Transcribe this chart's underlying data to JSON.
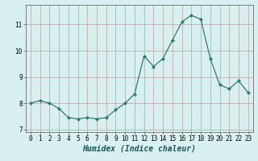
{
  "x": [
    0,
    1,
    2,
    3,
    4,
    5,
    6,
    7,
    8,
    9,
    10,
    11,
    12,
    13,
    14,
    15,
    16,
    17,
    18,
    19,
    20,
    21,
    22,
    23
  ],
  "y": [
    8.0,
    8.1,
    8.0,
    7.8,
    7.45,
    7.4,
    7.45,
    7.4,
    7.45,
    7.75,
    8.0,
    8.35,
    9.8,
    9.4,
    9.7,
    10.4,
    11.1,
    11.35,
    11.2,
    9.7,
    8.7,
    8.55,
    8.85,
    8.4
  ],
  "line_color": "#2e7d6e",
  "marker": "D",
  "marker_size": 2.0,
  "background_color": "#d9f0f0",
  "grid_color": "#c0a0a0",
  "xlabel": "Humidex (Indice chaleur)",
  "ylabel": "",
  "xlim": [
    -0.5,
    23.5
  ],
  "ylim": [
    6.9,
    11.75
  ],
  "yticks": [
    7,
    8,
    9,
    10,
    11
  ],
  "xticks": [
    0,
    1,
    2,
    3,
    4,
    5,
    6,
    7,
    8,
    9,
    10,
    11,
    12,
    13,
    14,
    15,
    16,
    17,
    18,
    19,
    20,
    21,
    22,
    23
  ],
  "tick_fontsize": 5.5,
  "xlabel_fontsize": 7.0,
  "line_width": 0.9
}
